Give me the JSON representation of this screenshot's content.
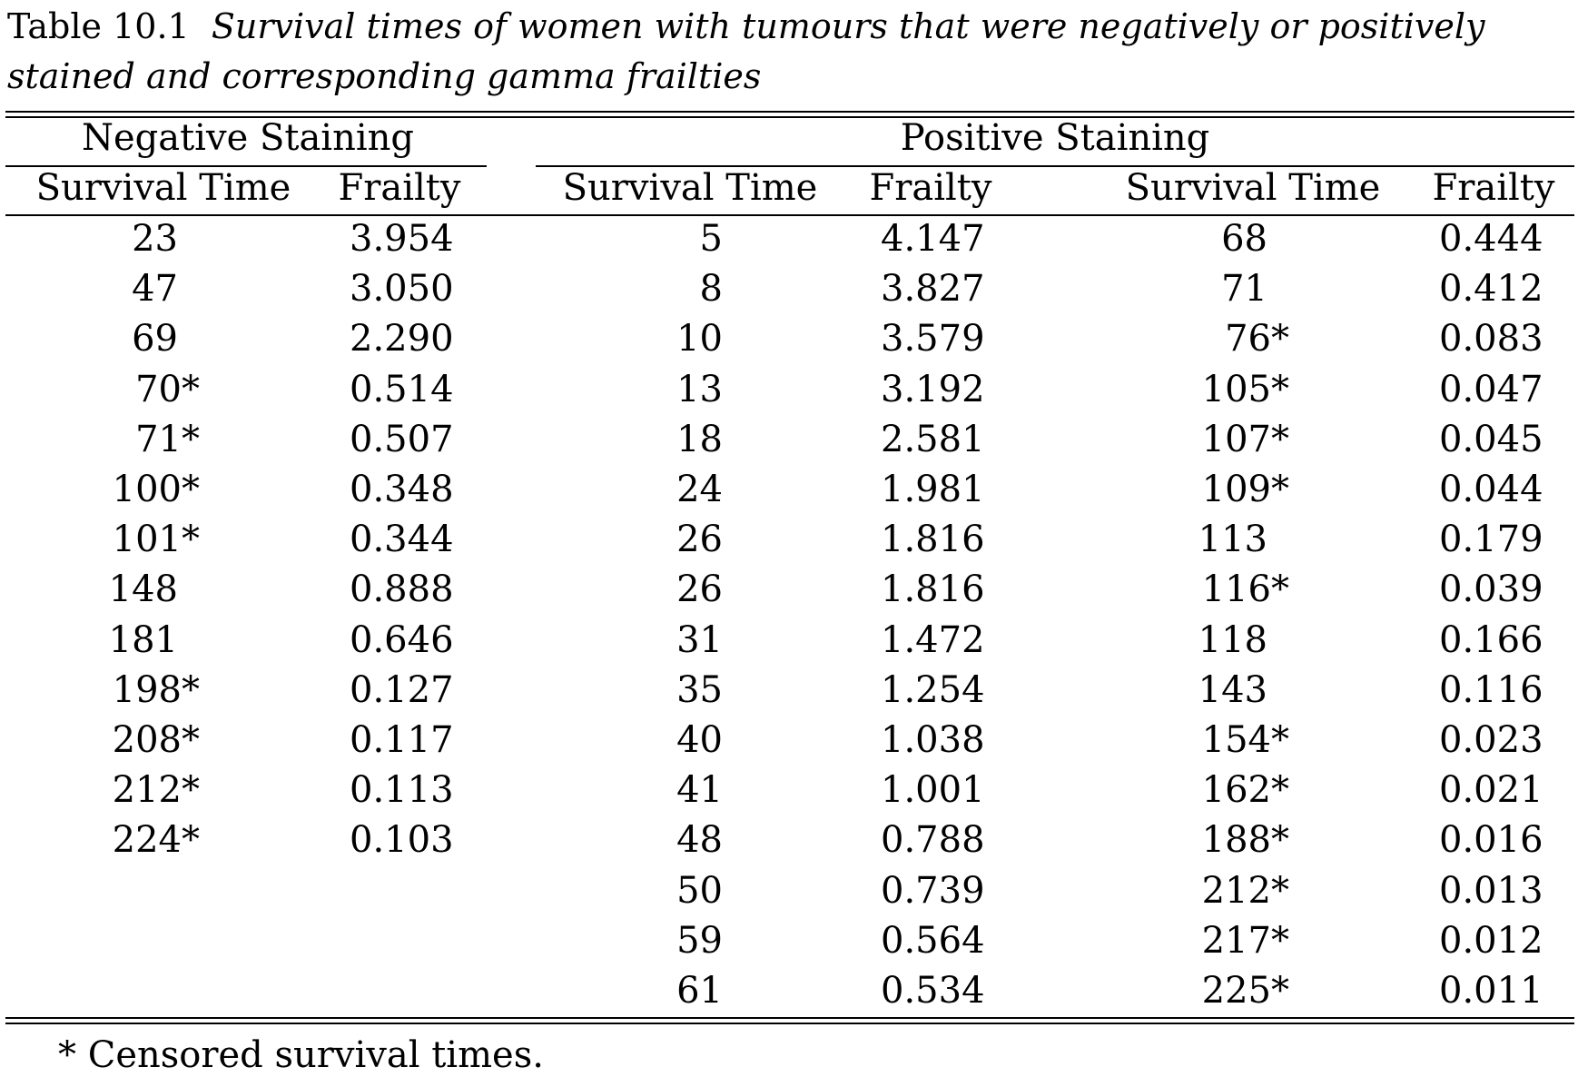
{
  "caption": {
    "label": "Table 10.1",
    "text": "Survival times of women with tumours that were negatively or positively stained and corresponding gamma frailties"
  },
  "groups": {
    "negative": "Negative Staining",
    "positive": "Positive Staining"
  },
  "columns": {
    "neg_time": "Survival Time",
    "neg_frailty": "Frailty",
    "pos1_time": "Survival Time",
    "pos1_frailty": "Frailty",
    "pos2_time": "Survival Time",
    "pos2_frailty": "Frailty"
  },
  "negative_rows": [
    [
      "23",
      "3.954"
    ],
    [
      "47",
      "3.050"
    ],
    [
      "69",
      "2.290"
    ],
    [
      "70*",
      "0.514"
    ],
    [
      "71*",
      "0.507"
    ],
    [
      "100*",
      "0.348"
    ],
    [
      "101*",
      "0.344"
    ],
    [
      "148",
      "0.888"
    ],
    [
      "181",
      "0.646"
    ],
    [
      "198*",
      "0.127"
    ],
    [
      "208*",
      "0.117"
    ],
    [
      "212*",
      "0.113"
    ],
    [
      "224*",
      "0.103"
    ]
  ],
  "positive_rows_1": [
    [
      "5",
      "4.147"
    ],
    [
      "8",
      "3.827"
    ],
    [
      "10",
      "3.579"
    ],
    [
      "13",
      "3.192"
    ],
    [
      "18",
      "2.581"
    ],
    [
      "24",
      "1.981"
    ],
    [
      "26",
      "1.816"
    ],
    [
      "26",
      "1.816"
    ],
    [
      "31",
      "1.472"
    ],
    [
      "35",
      "1.254"
    ],
    [
      "40",
      "1.038"
    ],
    [
      "41",
      "1.001"
    ],
    [
      "48",
      "0.788"
    ],
    [
      "50",
      "0.739"
    ],
    [
      "59",
      "0.564"
    ],
    [
      "61",
      "0.534"
    ]
  ],
  "positive_rows_2": [
    [
      "68",
      "0.444"
    ],
    [
      "71",
      "0.412"
    ],
    [
      "76*",
      "0.083"
    ],
    [
      "105*",
      "0.047"
    ],
    [
      "107*",
      "0.045"
    ],
    [
      "109*",
      "0.044"
    ],
    [
      "113",
      "0.179"
    ],
    [
      "116*",
      "0.039"
    ],
    [
      "118",
      "0.166"
    ],
    [
      "143",
      "0.116"
    ],
    [
      "154*",
      "0.023"
    ],
    [
      "162*",
      "0.021"
    ],
    [
      "188*",
      "0.016"
    ],
    [
      "212*",
      "0.013"
    ],
    [
      "217*",
      "0.012"
    ],
    [
      "225*",
      "0.011"
    ]
  ],
  "footnote": "* Censored survival times."
}
